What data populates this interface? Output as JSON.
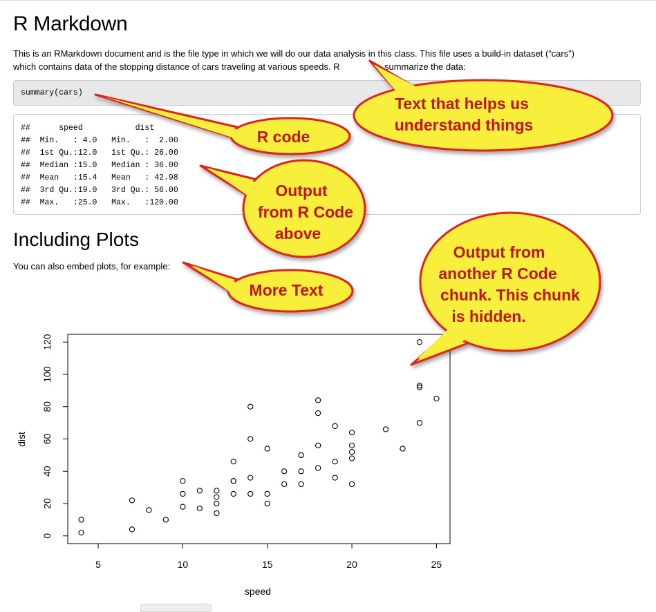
{
  "document": {
    "title": "R Markdown",
    "intro_line1": "This is an RMarkdown document and is the file type in which we will do our data analysis in this class. This file uses a build-in dataset (“cars”)",
    "intro_line2": "which contains data of the stopping distance of cars traveling at various speeds. R",
    "intro_line2_tail": "summarize the data:",
    "code": "summary(cars)",
    "output_lines": [
      "##      speed           dist       ",
      "##  Min.   : 4.0   Min.   :  2.00  ",
      "##  1st Qu.:12.0   1st Qu.: 26.00  ",
      "##  Median :15.0   Median : 36.00  ",
      "##  Mean   :15.4   Mean   : 42.98  ",
      "##  3rd Qu.:19.0   3rd Qu.: 56.00  ",
      "##  Max.   :25.0   Max.   :120.00  "
    ],
    "section_title": "Including Plots",
    "plots_text": "You can also embed plots, for example:"
  },
  "callouts": {
    "text_help": [
      "Text that helps us",
      "understand things"
    ],
    "r_code": [
      "R code"
    ],
    "output_above": [
      "Output",
      "from R Code",
      "above"
    ],
    "more_text": [
      "More Text"
    ],
    "hidden_chunk": [
      "Output from",
      "another R Code",
      "chunk. This chunk",
      "is hidden."
    ],
    "fill_color": "#f7ef3b",
    "border_color": "#e0201b",
    "text_color": "#c0161a"
  },
  "chart_data": {
    "type": "scatter",
    "xlabel": "speed",
    "ylabel": "dist",
    "xlim": [
      3.2,
      25.8
    ],
    "ylim": [
      -4.8,
      124.8
    ],
    "xticks": [
      5,
      10,
      15,
      20,
      25
    ],
    "yticks": [
      0,
      20,
      40,
      60,
      80,
      100,
      120
    ],
    "points": [
      [
        4,
        2
      ],
      [
        4,
        10
      ],
      [
        7,
        4
      ],
      [
        7,
        22
      ],
      [
        8,
        16
      ],
      [
        9,
        10
      ],
      [
        10,
        18
      ],
      [
        10,
        26
      ],
      [
        10,
        34
      ],
      [
        11,
        17
      ],
      [
        11,
        28
      ],
      [
        12,
        14
      ],
      [
        12,
        20
      ],
      [
        12,
        24
      ],
      [
        12,
        28
      ],
      [
        13,
        26
      ],
      [
        13,
        34
      ],
      [
        13,
        34
      ],
      [
        13,
        46
      ],
      [
        14,
        26
      ],
      [
        14,
        36
      ],
      [
        14,
        60
      ],
      [
        14,
        80
      ],
      [
        15,
        20
      ],
      [
        15,
        26
      ],
      [
        15,
        54
      ],
      [
        16,
        32
      ],
      [
        16,
        40
      ],
      [
        17,
        32
      ],
      [
        17,
        40
      ],
      [
        17,
        50
      ],
      [
        18,
        42
      ],
      [
        18,
        56
      ],
      [
        18,
        76
      ],
      [
        18,
        84
      ],
      [
        19,
        36
      ],
      [
        19,
        46
      ],
      [
        19,
        68
      ],
      [
        20,
        32
      ],
      [
        20,
        48
      ],
      [
        20,
        52
      ],
      [
        20,
        56
      ],
      [
        20,
        64
      ],
      [
        22,
        66
      ],
      [
        23,
        54
      ],
      [
        24,
        70
      ],
      [
        24,
        92
      ],
      [
        24,
        93
      ],
      [
        24,
        120
      ],
      [
        25,
        85
      ]
    ]
  }
}
